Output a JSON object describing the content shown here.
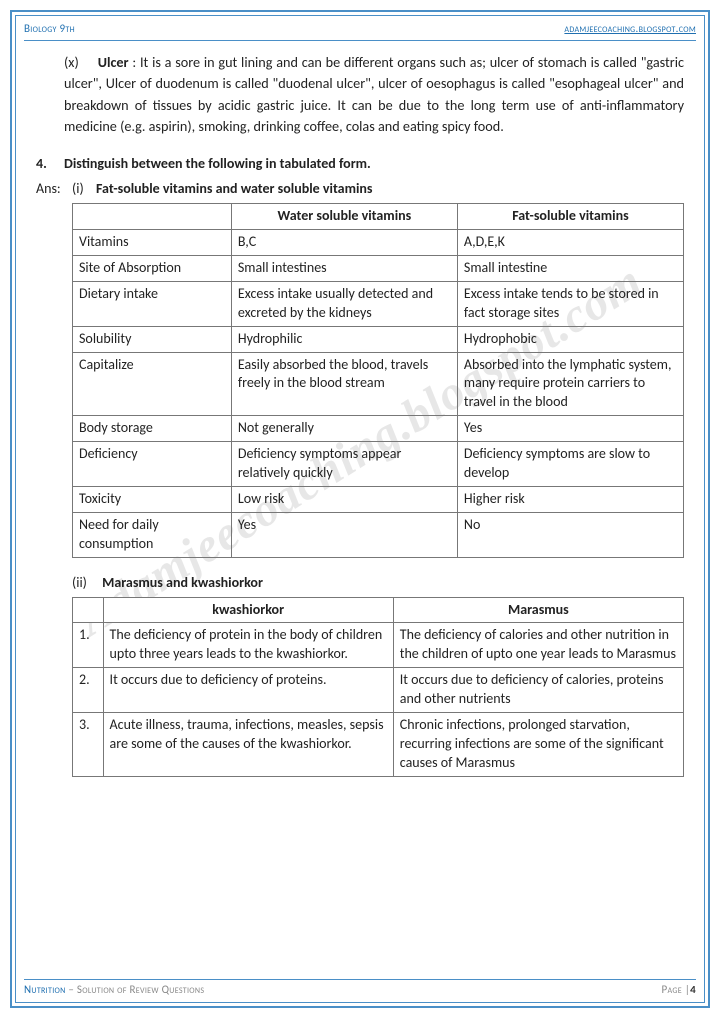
{
  "header": {
    "left": "Biology 9th",
    "right": "adamjeecoaching.blogspot.com"
  },
  "watermark": "Adamjeecoaching.blogspot.com",
  "para1": {
    "num": "(x)",
    "term": "Ulcer",
    "body": ": It is a sore in gut lining and can be different organs such as; ulcer of stomach is called \"gastric ulcer\", Ulcer of duodenum is called \"duodenal ulcer\", ulcer of oesophagus is called \"esophageal ulcer\" and breakdown of tissues by acidic gastric juice. It can be due to the long term use of anti-inflammatory medicine (e.g. aspirin), smoking, drinking coffee, colas and eating spicy food."
  },
  "q4": {
    "num": "4.",
    "text": "Distinguish between the following in tabulated form."
  },
  "ans": {
    "label": "Ans:",
    "num": "(i)",
    "text": "Fat-soluble vitamins and water soluble vitamins"
  },
  "table1": {
    "headers": [
      "",
      "Water soluble vitamins",
      "Fat-soluble vitamins"
    ],
    "rows": [
      [
        "Vitamins",
        "B,C",
        "A,D,E,K"
      ],
      [
        "Site of Absorption",
        "Small intestines",
        "Small intestine"
      ],
      [
        "Dietary intake",
        "Excess intake usually detected and excreted by the kidneys",
        "Excess intake tends to be stored in fact storage sites"
      ],
      [
        "Solubility",
        "Hydrophilic",
        "Hydrophobic"
      ],
      [
        "Capitalize",
        "Easily absorbed the blood, travels freely in the blood stream",
        "Absorbed into the lymphatic system, many require protein carriers to travel in the blood"
      ],
      [
        "Body storage",
        "Not generally",
        "Yes"
      ],
      [
        "Deficiency",
        "Deficiency symptoms appear relatively quickly",
        "Deficiency symptoms are slow to develop"
      ],
      [
        "Toxicity",
        "Low risk",
        "Higher risk"
      ],
      [
        "Need for daily consumption",
        "Yes",
        "No"
      ]
    ]
  },
  "sub2": {
    "num": "(ii)",
    "text": "Marasmus and kwashiorkor"
  },
  "table2": {
    "headers": [
      "",
      "kwashiorkor",
      "Marasmus"
    ],
    "rows": [
      [
        "1.",
        "The deficiency of protein in the body of children upto three years leads to the kwashiorkor.",
        "The deficiency of calories and other nutrition in the children of upto one year leads to Marasmus"
      ],
      [
        "2.",
        "It occurs due to deficiency of proteins.",
        "It occurs due to deficiency of calories, proteins and other nutrients"
      ],
      [
        "3.",
        "Acute illness, trauma, infections, measles, sepsis are some of the causes of the kwashiorkor.",
        "Chronic infections, prolonged starvation, recurring infections are some of the significant causes of Marasmus"
      ]
    ]
  },
  "footer": {
    "topic": "Nutrition",
    "sub": " – Solution of Review Questions",
    "page_label": "Page |",
    "page_num": "4"
  }
}
